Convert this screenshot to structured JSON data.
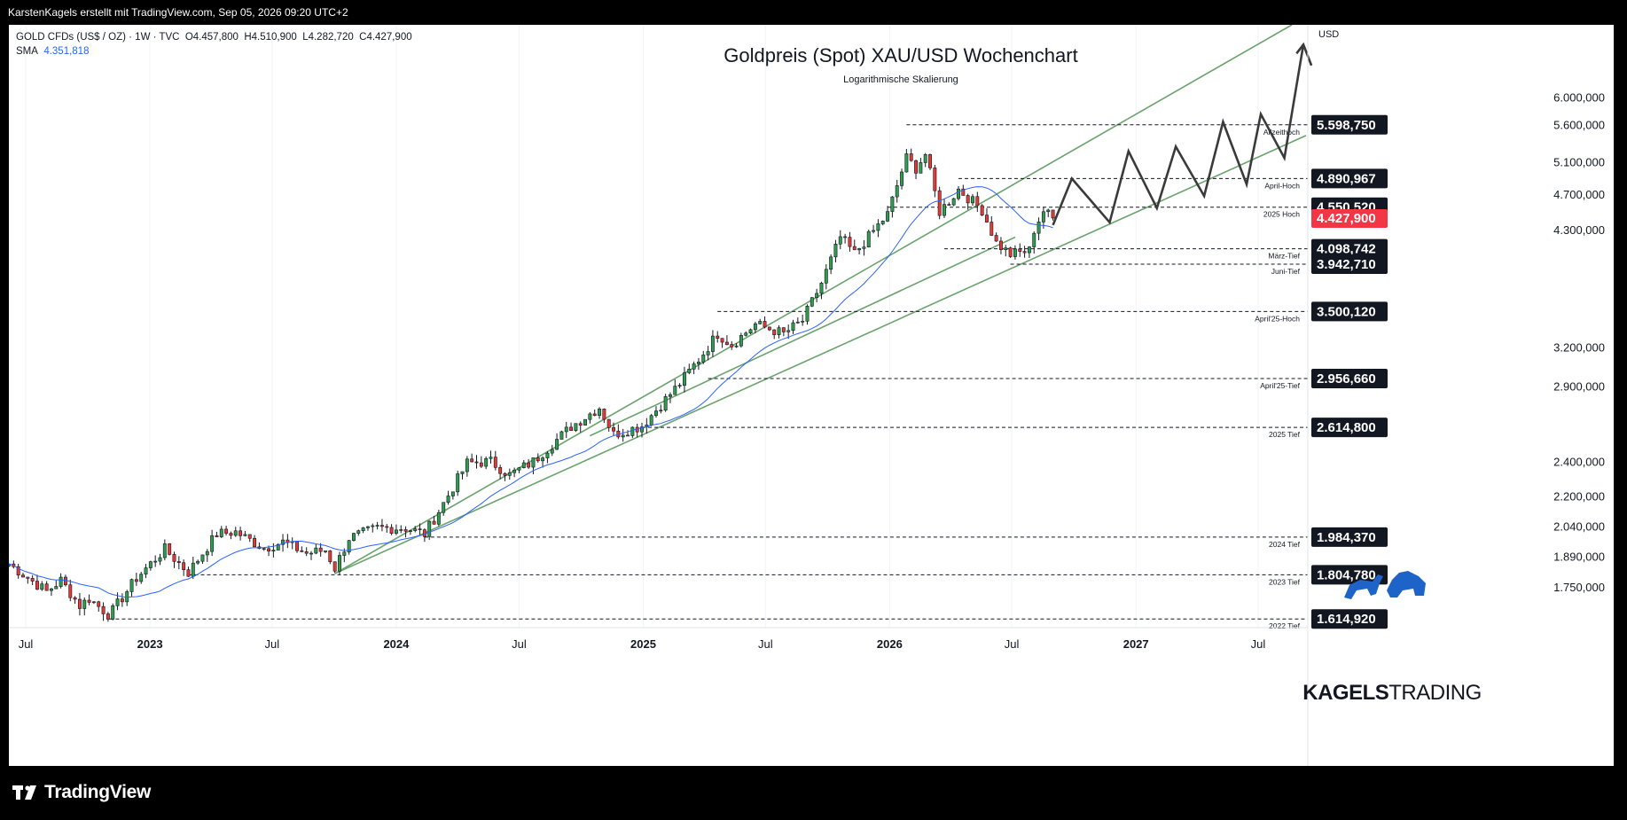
{
  "header": {
    "credit": "KarstenKagels erstellt mit TradingView.com, Sep 05, 2026 09:20 UTC+2"
  },
  "symbol": {
    "name": "GOLD CFDs (US$ / OZ) · 1W · TVC",
    "open": "O4.457,800",
    "high": "H4.510,900",
    "low": "L4.282,720",
    "close": "C4.427,900",
    "sma_label": "SMA",
    "sma_value": "4.351,818"
  },
  "chart_data": {
    "type": "candlestick",
    "title": "Goldpreis (Spot) XAU/USD Wochenchart",
    "subtitle": "Logarithmische Skalierung",
    "y_axis": {
      "currency": "USD",
      "scale": "log",
      "range": [
        1580,
        7200
      ],
      "ticks": [
        {
          "value": 6000,
          "label": "6.000,000"
        },
        {
          "value": 5600,
          "label": "5.600,000"
        },
        {
          "value": 5100,
          "label": "5.100,000"
        },
        {
          "value": 4700,
          "label": "4.700,000"
        },
        {
          "value": 4300,
          "label": "4.300,000"
        },
        {
          "value": 3200,
          "label": "3.200,000"
        },
        {
          "value": 2900,
          "label": "2.900,000"
        },
        {
          "value": 2400,
          "label": "2.400,000"
        },
        {
          "value": 2200,
          "label": "2.200,000"
        },
        {
          "value": 2040,
          "label": "2.040,000"
        },
        {
          "value": 1890,
          "label": "1.890,000"
        },
        {
          "value": 1750,
          "label": "1.750,000"
        }
      ]
    },
    "x_axis": {
      "range": [
        "2022-06-06",
        "2027-09-10"
      ],
      "ticks": [
        {
          "date": "2022-07-01",
          "label": "Jul",
          "bold": false
        },
        {
          "date": "2023-01-01",
          "label": "2023",
          "bold": true
        },
        {
          "date": "2023-07-01",
          "label": "Jul",
          "bold": false
        },
        {
          "date": "2024-01-01",
          "label": "2024",
          "bold": true
        },
        {
          "date": "2024-07-01",
          "label": "Jul",
          "bold": false
        },
        {
          "date": "2025-01-01",
          "label": "2025",
          "bold": true
        },
        {
          "date": "2025-07-01",
          "label": "Jul",
          "bold": false
        },
        {
          "date": "2026-01-01",
          "label": "2026",
          "bold": true
        },
        {
          "date": "2026-07-01",
          "label": "Jul",
          "bold": false
        },
        {
          "date": "2027-01-01",
          "label": "2027",
          "bold": true
        },
        {
          "date": "2027-07-01",
          "label": "Jul",
          "bold": false
        }
      ]
    },
    "colors": {
      "up": "#26a69a",
      "down": "#ef5350",
      "candle_up": "#2e9e4b",
      "candle_down": "#e53935",
      "sma": "#2962ff",
      "trend": "#6aa36c",
      "projection": "#3a3a3a",
      "current": "#f23645"
    },
    "current_price": {
      "value": 4427.9,
      "label": "4.427,900"
    },
    "levels": [
      {
        "name": "Allzeithoch",
        "value": 5598.75,
        "label": "5.598,750",
        "start": "2026-01-26"
      },
      {
        "name": "April-Hoch",
        "value": 4890.967,
        "label": "4.890,967",
        "start": "2026-04-13"
      },
      {
        "name": "2025 Hoch",
        "value": 4550.52,
        "label": "4.550,520",
        "start": "2025-12-29"
      },
      {
        "name": "März-Tief",
        "value": 4098.742,
        "label": "4.098,742",
        "start": "2026-03-23"
      },
      {
        "name": "Juni-Tief",
        "value": 3942.71,
        "label": "3.942,710",
        "start": "2026-06-29"
      },
      {
        "name": "April'25-Hoch",
        "value": 3500.12,
        "label": "3.500,120",
        "start": "2025-04-21"
      },
      {
        "name": "April'25-Tief",
        "value": 2956.66,
        "label": "2.956,660",
        "start": "2025-04-07"
      },
      {
        "name": "2025 Tief",
        "value": 2614.8,
        "label": "2.614,800",
        "start": "2024-12-30"
      },
      {
        "name": "2024 Tief",
        "value": 1984.37,
        "label": "1.984,370",
        "start": "2024-02-12"
      },
      {
        "name": "2023 Tief",
        "value": 1804.78,
        "label": "1.804,780",
        "start": "2023-02-27"
      },
      {
        "name": "2022 Tief",
        "value": 1614.92,
        "label": "1.614,920",
        "start": "2022-11-02"
      }
    ],
    "trendlines": [
      {
        "points": [
          [
            "2023-10-02",
            1810
          ],
          [
            "2027-08-20",
            7200
          ]
        ]
      },
      {
        "points": [
          [
            "2023-10-02",
            1810
          ],
          [
            "2027-09-10",
            5450
          ]
        ]
      },
      {
        "points": [
          [
            "2024-10-14",
            2560
          ],
          [
            "2026-07-06",
            4220
          ]
        ]
      }
    ],
    "projection": [
      [
        "2026-08-31",
        4350
      ],
      [
        "2026-09-28",
        4890
      ],
      [
        "2026-11-23",
        4380
      ],
      [
        "2026-12-21",
        5240
      ],
      [
        "2027-02-01",
        4540
      ],
      [
        "2027-03-01",
        5300
      ],
      [
        "2027-04-12",
        4680
      ],
      [
        "2027-05-10",
        5640
      ],
      [
        "2027-06-14",
        4820
      ],
      [
        "2027-07-05",
        5750
      ],
      [
        "2027-08-09",
        5150
      ],
      [
        "2027-09-06",
        6850
      ]
    ],
    "projection_arrowhead": [
      [
        "2027-08-27",
        6700
      ],
      [
        "2027-09-06",
        6850
      ],
      [
        "2027-09-18",
        6500
      ]
    ],
    "anchors": [
      [
        "2022-06-06",
        1855
      ],
      [
        "2022-08-01",
        1730
      ],
      [
        "2022-08-22",
        1780
      ],
      [
        "2022-09-19",
        1670
      ],
      [
        "2022-10-03",
        1700
      ],
      [
        "2022-11-02",
        1630
      ],
      [
        "2022-12-12",
        1790
      ],
      [
        "2023-01-23",
        1925
      ],
      [
        "2023-02-27",
        1815
      ],
      [
        "2023-04-10",
        2000
      ],
      [
        "2023-05-08",
        2010
      ],
      [
        "2023-06-19",
        1930
      ],
      [
        "2023-07-17",
        1960
      ],
      [
        "2023-08-21",
        1905
      ],
      [
        "2023-09-18",
        1920
      ],
      [
        "2023-10-02",
        1835
      ],
      [
        "2023-10-23",
        1980
      ],
      [
        "2023-12-04",
        2030
      ],
      [
        "2024-01-15",
        2030
      ],
      [
        "2024-02-12",
        2000
      ],
      [
        "2024-03-11",
        2160
      ],
      [
        "2024-04-15",
        2390
      ],
      [
        "2024-05-20",
        2400
      ],
      [
        "2024-06-17",
        2320
      ],
      [
        "2024-07-22",
        2400
      ],
      [
        "2024-09-16",
        2620
      ],
      [
        "2024-10-28",
        2750
      ],
      [
        "2024-11-18",
        2570
      ],
      [
        "2024-12-30",
        2625
      ],
      [
        "2025-02-24",
        2920
      ],
      [
        "2025-03-31",
        3150
      ],
      [
        "2025-04-21",
        3310
      ],
      [
        "2025-05-12",
        3220
      ],
      [
        "2025-06-16",
        3390
      ],
      [
        "2025-07-28",
        3310
      ],
      [
        "2025-08-25",
        3420
      ],
      [
        "2025-09-22",
        3760
      ],
      [
        "2025-10-20",
        4220
      ],
      [
        "2025-11-10",
        4050
      ],
      [
        "2025-12-29",
        4470
      ],
      [
        "2026-01-19",
        4980
      ],
      [
        "2026-01-26",
        5150
      ],
      [
        "2026-02-09",
        5020
      ],
      [
        "2026-02-23",
        5200
      ],
      [
        "2026-03-16",
        4500
      ],
      [
        "2026-03-30",
        4620
      ],
      [
        "2026-04-13",
        4760
      ],
      [
        "2026-05-18",
        4520
      ],
      [
        "2026-06-08",
        4160
      ],
      [
        "2026-06-29",
        4040
      ],
      [
        "2026-07-27",
        4080
      ],
      [
        "2026-08-03",
        4300
      ],
      [
        "2026-08-17",
        4510
      ],
      [
        "2026-08-31",
        4428
      ]
    ]
  },
  "watermark": {
    "brand_bold": "KAGELS",
    "brand_light": "TRADING"
  },
  "footer": {
    "logo": "TradingView"
  }
}
